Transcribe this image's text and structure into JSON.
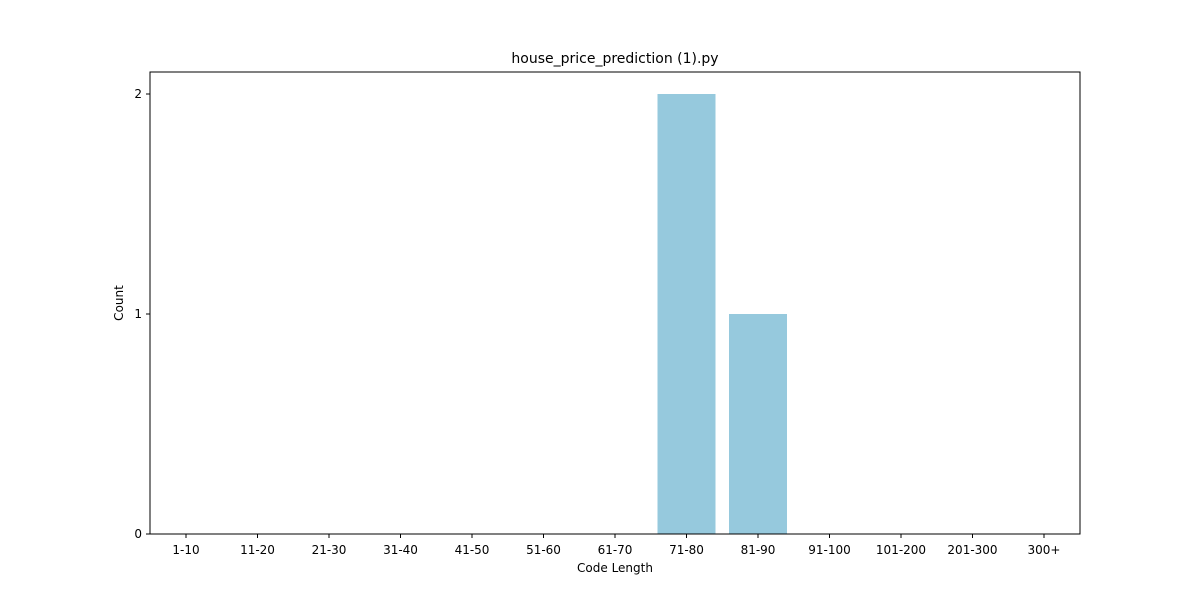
{
  "chart_data": {
    "type": "bar",
    "title": "house_price_prediction (1).py",
    "xlabel": "Code Length",
    "ylabel": "Count",
    "categories": [
      "1-10",
      "11-20",
      "21-30",
      "31-40",
      "41-50",
      "51-60",
      "61-70",
      "71-80",
      "81-90",
      "91-100",
      "101-200",
      "201-300",
      "300+"
    ],
    "values": [
      0,
      0,
      0,
      0,
      0,
      0,
      0,
      2,
      1,
      0,
      0,
      0,
      0
    ],
    "ylim": [
      0,
      2
    ],
    "yticks": [
      0,
      1,
      2
    ],
    "grid": false,
    "legend": "none",
    "bar_color": "#96c9dd"
  }
}
